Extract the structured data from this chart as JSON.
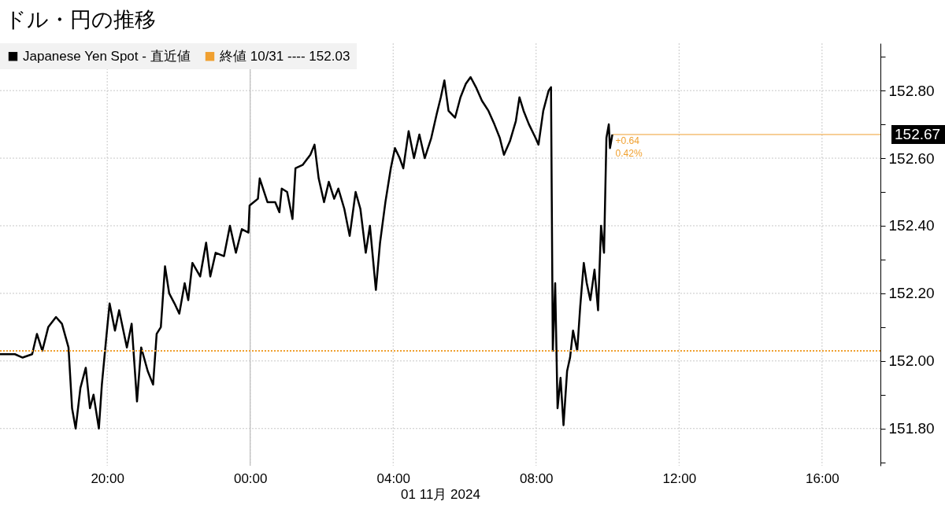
{
  "chart_data": {
    "type": "line",
    "title": "ドル・円の推移",
    "xlabel": "01 11月 2024",
    "xlim": [
      "2024-10-31T17:00",
      "2024-11-01T17:38"
    ],
    "xticks": [
      {
        "value": "2024-10-31T20:00",
        "label": "20:00"
      },
      {
        "value": "2024-11-01T00:00",
        "label": "00:00"
      },
      {
        "value": "2024-11-01T04:00",
        "label": "04:00"
      },
      {
        "value": "2024-11-01T08:00",
        "label": "08:00"
      },
      {
        "value": "2024-11-01T12:00",
        "label": "12:00"
      },
      {
        "value": "2024-11-01T16:00",
        "label": "16:00"
      }
    ],
    "ylim": [
      151.69,
      152.94
    ],
    "yticks": [
      {
        "value": 151.7,
        "label": null
      },
      {
        "value": 151.8,
        "label": "151.80"
      },
      {
        "value": 151.9,
        "label": null
      },
      {
        "value": 152,
        "label": "152.00"
      },
      {
        "value": 152.1,
        "label": null
      },
      {
        "value": 152.2,
        "label": "152.20"
      },
      {
        "value": 152.3,
        "label": null
      },
      {
        "value": 152.4,
        "label": "152.40"
      },
      {
        "value": 152.5,
        "label": null
      },
      {
        "value": 152.6,
        "label": "152.60"
      },
      {
        "value": 152.7,
        "label": null
      },
      {
        "value": 152.8,
        "label": "152.80"
      },
      {
        "value": 152.9,
        "label": null
      }
    ],
    "grid": true,
    "legend": "top left",
    "series": [
      {
        "name": "Japanese Yen Spot - 直近値",
        "color": "#000000",
        "line_style": "solid",
        "x": [
          "2024-10-31T17:00",
          "2024-10-31T17:05",
          "2024-10-31T17:25",
          "2024-10-31T17:38",
          "2024-10-31T17:54",
          "2024-10-31T18:02",
          "2024-10-31T18:11",
          "2024-10-31T18:21",
          "2024-10-31T18:34",
          "2024-10-31T18:44",
          "2024-10-31T18:55",
          "2024-10-31T19:01",
          "2024-10-31T19:07",
          "2024-10-31T19:15",
          "2024-10-31T19:24",
          "2024-10-31T19:31",
          "2024-10-31T19:37",
          "2024-10-31T19:46",
          "2024-10-31T19:51",
          "2024-10-31T19:59",
          "2024-10-31T20:04",
          "2024-10-31T20:13",
          "2024-10-31T20:20",
          "2024-10-31T20:33",
          "2024-10-31T20:41",
          "2024-10-31T20:50",
          "2024-10-31T20:57",
          "2024-10-31T21:08",
          "2024-10-31T21:17",
          "2024-10-31T21:23",
          "2024-10-31T21:30",
          "2024-10-31T21:37",
          "2024-10-31T21:44",
          "2024-10-31T21:53",
          "2024-10-31T22:01",
          "2024-10-31T22:10",
          "2024-10-31T22:16",
          "2024-10-31T22:23",
          "2024-10-31T22:36",
          "2024-10-31T22:46",
          "2024-10-31T22:53",
          "2024-10-31T23:02",
          "2024-10-31T23:16",
          "2024-10-31T23:26",
          "2024-10-31T23:36",
          "2024-10-31T23:46",
          "2024-10-31T23:57",
          "2024-10-31T23:59",
          "2024-11-01T00:13",
          "2024-11-01T00:16",
          "2024-11-01T00:29",
          "2024-11-01T00:42",
          "2024-11-01T00:49",
          "2024-11-01T00:53",
          "2024-11-01T01:02",
          "2024-11-01T01:11",
          "2024-11-01T01:16",
          "2024-11-01T01:28",
          "2024-11-01T01:41",
          "2024-11-01T01:48",
          "2024-11-01T01:55",
          "2024-11-01T02:04",
          "2024-11-01T02:12",
          "2024-11-01T02:21",
          "2024-11-01T02:28",
          "2024-11-01T02:38",
          "2024-11-01T02:47",
          "2024-11-01T02:57",
          "2024-11-01T03:05",
          "2024-11-01T03:14",
          "2024-11-01T03:21",
          "2024-11-01T03:31",
          "2024-11-01T03:38",
          "2024-11-01T03:47",
          "2024-11-01T03:56",
          "2024-11-01T04:03",
          "2024-11-01T04:11",
          "2024-11-01T04:17",
          "2024-11-01T04:26",
          "2024-11-01T04:35",
          "2024-11-01T04:44",
          "2024-11-01T04:53",
          "2024-11-01T05:04",
          "2024-11-01T05:13",
          "2024-11-01T05:20",
          "2024-11-01T05:26",
          "2024-11-01T05:33",
          "2024-11-01T05:44",
          "2024-11-01T05:53",
          "2024-11-01T06:02",
          "2024-11-01T06:10",
          "2024-11-01T06:19",
          "2024-11-01T06:29",
          "2024-11-01T06:40",
          "2024-11-01T06:50",
          "2024-11-01T06:59",
          "2024-11-01T07:06",
          "2024-11-01T07:16",
          "2024-11-01T07:26",
          "2024-11-01T07:32",
          "2024-11-01T07:39",
          "2024-11-01T07:48",
          "2024-11-01T07:59",
          "2024-11-01T08:04",
          "2024-11-01T08:12",
          "2024-11-01T08:21",
          "2024-11-01T08:25",
          "2024-11-01T08:28",
          "2024-11-01T08:32",
          "2024-11-01T08:36",
          "2024-11-01T08:41",
          "2024-11-01T08:46",
          "2024-11-01T08:52",
          "2024-11-01T08:57",
          "2024-11-01T09:02",
          "2024-11-01T09:09",
          "2024-11-01T09:14",
          "2024-11-01T09:20",
          "2024-11-01T09:25",
          "2024-11-01T09:31",
          "2024-11-01T09:38",
          "2024-11-01T09:44",
          "2024-11-01T09:49",
          "2024-11-01T09:54",
          "2024-11-01T09:58",
          "2024-11-01T10:02",
          "2024-11-01T10:04",
          "2024-11-01T10:08"
        ],
        "values": [
          152.02,
          152.02,
          152.02,
          152.01,
          152.02,
          152.08,
          152.03,
          152.1,
          152.13,
          152.11,
          152.04,
          151.86,
          151.8,
          151.92,
          151.98,
          151.86,
          151.9,
          151.8,
          151.93,
          152.08,
          152.17,
          152.09,
          152.15,
          152.04,
          152.11,
          151.88,
          152.04,
          151.97,
          151.93,
          152.08,
          152.1,
          152.28,
          152.2,
          152.17,
          152.14,
          152.23,
          152.18,
          152.29,
          152.25,
          152.35,
          152.25,
          152.32,
          152.31,
          152.4,
          152.32,
          152.39,
          152.38,
          152.46,
          152.48,
          152.54,
          152.47,
          152.47,
          152.44,
          152.51,
          152.5,
          152.42,
          152.57,
          152.58,
          152.61,
          152.64,
          152.54,
          152.47,
          152.53,
          152.48,
          152.51,
          152.45,
          152.37,
          152.5,
          152.45,
          152.32,
          152.4,
          152.21,
          152.35,
          152.47,
          152.57,
          152.63,
          152.6,
          152.57,
          152.68,
          152.6,
          152.67,
          152.6,
          152.66,
          152.73,
          152.78,
          152.83,
          152.74,
          152.72,
          152.78,
          152.82,
          152.84,
          152.81,
          152.77,
          152.74,
          152.7,
          152.66,
          152.61,
          152.65,
          152.71,
          152.78,
          152.74,
          152.7,
          152.66,
          152.64,
          152.74,
          152.8,
          152.81,
          152.03,
          152.23,
          151.86,
          151.95,
          151.81,
          151.97,
          152.01,
          152.09,
          152.03,
          152.16,
          152.29,
          152.23,
          152.18,
          152.27,
          152.15,
          152.4,
          152.32,
          152.66,
          152.7,
          152.63,
          152.67
        ]
      },
      {
        "name": "終値 10/31 ---- 152.03",
        "color": "#f0a030",
        "line_style": "dotted",
        "x": [
          "2024-10-31T17:00",
          "2024-11-01T17:38"
        ],
        "values": [
          152.03,
          152.03
        ]
      }
    ],
    "ref_lines": [
      {
        "axis": "x",
        "value": "2024-11-01T00:00",
        "color": "#bbbbbb"
      },
      {
        "axis": "y",
        "value": 152.67,
        "label": "152.67",
        "color": "#f0a030"
      }
    ],
    "annotations": [
      {
        "text": "+0.64",
        "x": "2024-11-01T10:08",
        "y": 152.67
      },
      {
        "text": "0.42%",
        "x": "2024-11-01T10:08",
        "y": 152.67
      }
    ]
  }
}
